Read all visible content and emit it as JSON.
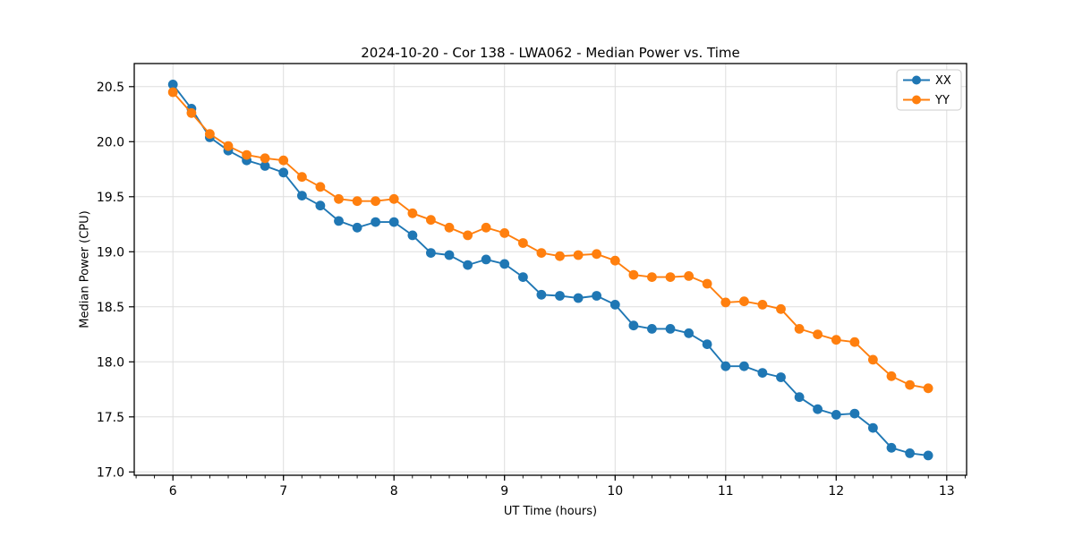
{
  "chart_data": {
    "type": "line",
    "title": "2024-10-20 - Cor 138 - LWA062 - Median Power vs. Time",
    "xlabel": "UT Time (hours)",
    "ylabel": "Median Power (CPU)",
    "xlim": [
      5.65,
      13.18
    ],
    "ylim": [
      16.97,
      20.71
    ],
    "xticks": [
      6,
      7,
      8,
      9,
      10,
      11,
      12,
      13
    ],
    "xticklabels": [
      "6",
      "7",
      "8",
      "9",
      "10",
      "11",
      "12",
      "13"
    ],
    "yticks": [
      17.0,
      17.5,
      18.0,
      18.5,
      19.0,
      19.5,
      20.0,
      20.5
    ],
    "yticklabels": [
      "17.0",
      "17.5",
      "18.0",
      "18.5",
      "19.0",
      "19.5",
      "20.0",
      "20.5"
    ],
    "x_minor_tick_step": 0.166667,
    "grid": true,
    "legend_position": "upper right",
    "x": [
      6.0,
      6.167,
      6.333,
      6.5,
      6.667,
      6.833,
      7.0,
      7.167,
      7.333,
      7.5,
      7.667,
      7.833,
      8.0,
      8.167,
      8.333,
      8.5,
      8.667,
      8.833,
      9.0,
      9.167,
      9.333,
      9.5,
      9.667,
      9.833,
      10.0,
      10.167,
      10.333,
      10.5,
      10.667,
      10.833,
      11.0,
      11.167,
      11.333,
      11.5,
      11.667,
      11.833,
      12.0,
      12.167,
      12.333,
      12.5,
      12.667,
      12.833
    ],
    "series": [
      {
        "name": "XX",
        "color": "#1f77b4",
        "marker": "circle",
        "values": [
          20.52,
          20.3,
          20.04,
          19.92,
          19.83,
          19.78,
          19.72,
          19.51,
          19.42,
          19.28,
          19.22,
          19.27,
          19.27,
          19.15,
          18.99,
          18.97,
          18.88,
          18.93,
          18.89,
          18.77,
          18.61,
          18.6,
          18.58,
          18.6,
          18.52,
          18.33,
          18.3,
          18.3,
          18.26,
          18.16,
          17.96,
          17.96,
          17.9,
          17.86,
          17.68,
          17.57,
          17.52,
          17.53,
          17.4,
          17.22,
          17.17,
          17.15
        ]
      },
      {
        "name": "YY",
        "color": "#ff7f0e",
        "marker": "circle",
        "values": [
          20.45,
          20.26,
          20.07,
          19.96,
          19.88,
          19.85,
          19.83,
          19.68,
          19.59,
          19.48,
          19.46,
          19.46,
          19.48,
          19.35,
          19.29,
          19.22,
          19.15,
          19.22,
          19.17,
          19.08,
          18.99,
          18.96,
          18.97,
          18.98,
          18.92,
          18.79,
          18.77,
          18.77,
          18.78,
          18.71,
          18.54,
          18.55,
          18.52,
          18.48,
          18.3,
          18.25,
          18.2,
          18.18,
          18.02,
          17.87,
          17.79,
          17.76
        ]
      }
    ]
  },
  "colors": {
    "background": "#ffffff",
    "grid": "#dedede",
    "spine": "#000000",
    "tick": "#000000",
    "text": "#000000",
    "legend_border": "#cccccc",
    "legend_background": "#ffffff"
  }
}
